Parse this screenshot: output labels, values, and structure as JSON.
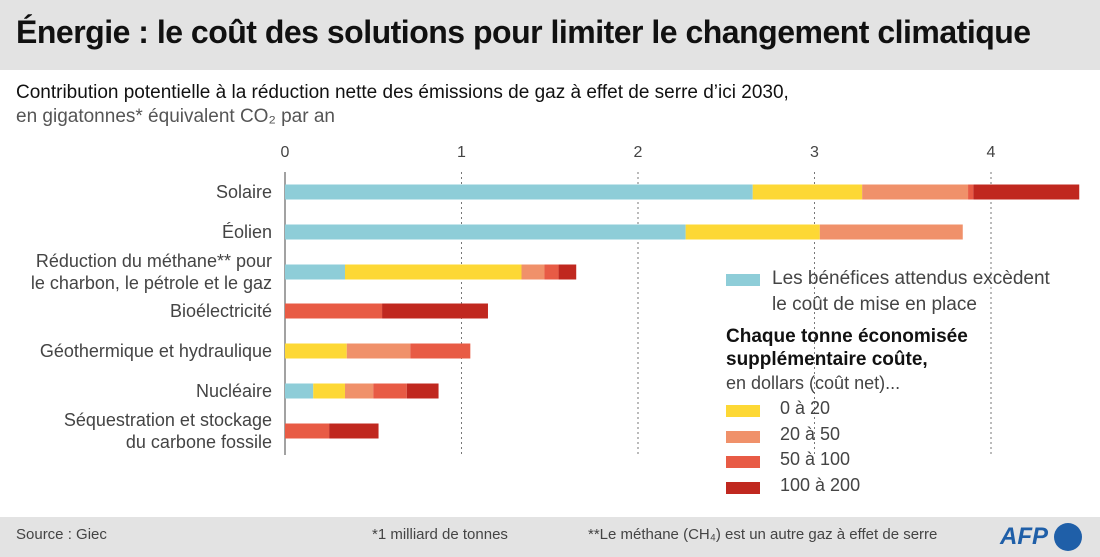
{
  "title": "Énergie : le coût des solutions pour limiter le changement climatique",
  "subtitle": "Contribution potentielle à la réduction nette des émissions de gaz à effet de serre d’ici 2030,",
  "subtitle2": "en gigatonnes* équivalent CO₂ par an",
  "legend": {
    "benefit_label_line1": "Les bénéfices attendus excèdent",
    "benefit_label_line2": "le coût de mise en place",
    "cost_heading_line1": "Chaque tonne économisée",
    "cost_heading_line2": "supplémentaire coûte,",
    "cost_sub": "en dollars (coût net)...",
    "items": [
      {
        "label": "0 à 20",
        "color": "#fdd835"
      },
      {
        "label": "20 à 50",
        "color": "#f0916a"
      },
      {
        "label": "50 à 100",
        "color": "#e85b45"
      },
      {
        "label": "100 à 200",
        "color": "#c0281f"
      }
    ]
  },
  "footer": {
    "source": "Source : Giec",
    "note1": "*1 milliard de tonnes",
    "note2": "**Le méthane (CH₄) est un autre gaz à effet de serre",
    "logo": "AFP"
  },
  "colors": {
    "benefit": "#8ecdd8",
    "c0_20": "#fdd835",
    "c20_50": "#f0916a",
    "c50_100": "#e85b45",
    "c100_200": "#c0281f"
  },
  "chart_data": {
    "type": "bar",
    "orientation": "horizontal",
    "stacked": true,
    "xlim": [
      0,
      4.5
    ],
    "xticks": [
      0,
      1,
      2,
      3,
      4
    ],
    "grid": true,
    "categories": [
      [
        "Solaire"
      ],
      [
        "Éolien"
      ],
      [
        "Réduction du méthane** pour",
        "le charbon, le pétrole et le gaz"
      ],
      [
        "Bioélectricité"
      ],
      [
        "Géothermique et hydraulique"
      ],
      [
        "Nucléaire"
      ],
      [
        "Séquestration et stockage",
        "du carbone fossile"
      ]
    ],
    "series": [
      {
        "name": "Les bénéfices attendus excèdent le coût de mise en place",
        "color": "#8ecdd8",
        "values": [
          2.65,
          2.27,
          0.34,
          0,
          0,
          0.16,
          0
        ]
      },
      {
        "name": "0 à 20",
        "color": "#fdd835",
        "values": [
          0.62,
          0.76,
          1.0,
          0,
          0.35,
          0.18,
          0
        ]
      },
      {
        "name": "20 à 50",
        "color": "#f0916a",
        "values": [
          0.6,
          0.81,
          0.13,
          0,
          0.36,
          0.16,
          0
        ]
      },
      {
        "name": "50 à 100",
        "color": "#e85b45",
        "values": [
          0.03,
          0,
          0.08,
          0.55,
          0.34,
          0.19,
          0.25
        ]
      },
      {
        "name": "100 à 200",
        "color": "#c0281f",
        "values": [
          0.6,
          0,
          0.1,
          0.6,
          0,
          0.18,
          0.28
        ]
      }
    ]
  }
}
